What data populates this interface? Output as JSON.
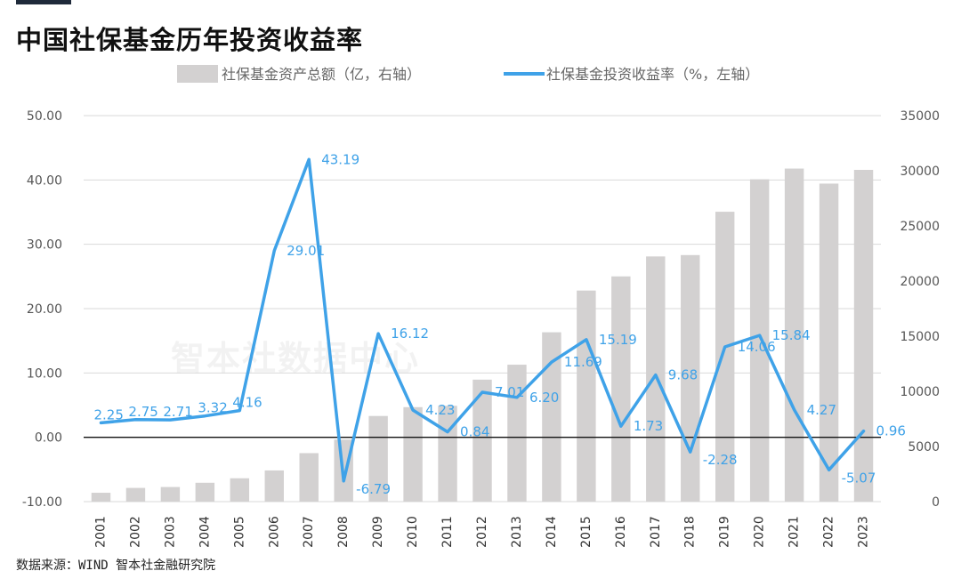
{
  "title": "中国社保基金历年投资收益率",
  "source": "数据来源：WIND 智本社金融研究院",
  "watermark": "智本社数据中心",
  "chart_data": {
    "type": "bar+line",
    "categories": [
      "2001",
      "2002",
      "2003",
      "2004",
      "2005",
      "2006",
      "2007",
      "2008",
      "2009",
      "2010",
      "2011",
      "2012",
      "2013",
      "2014",
      "2015",
      "2016",
      "2017",
      "2018",
      "2019",
      "2020",
      "2021",
      "2022",
      "2023"
    ],
    "series": [
      {
        "name": "社保基金资产总额（亿，右轴）",
        "type": "bar",
        "axis": "right",
        "color": "#d3d1d1",
        "values": [
          805,
          1242,
          1325,
          1711,
          2118,
          2828,
          4397,
          5624,
          7766,
          8567,
          8688,
          11060,
          12416,
          15356,
          19138,
          20423,
          22231,
          22354,
          26285,
          29227,
          30198,
          28836,
          30080
        ]
      },
      {
        "name": "社保基金投资收益率（%，左轴）",
        "type": "line",
        "axis": "left",
        "color": "#3fa2e8",
        "values": [
          2.25,
          2.75,
          2.71,
          3.32,
          4.16,
          29.01,
          43.19,
          -6.79,
          16.12,
          4.23,
          0.84,
          7.01,
          6.2,
          11.69,
          15.19,
          1.73,
          9.68,
          -2.28,
          14.06,
          15.84,
          4.27,
          -5.07,
          0.96
        ],
        "labels": [
          "2.25",
          "2.75",
          "2.71",
          "3.32",
          "4.16",
          "29.01",
          "43.19",
          "-6.79",
          "16.12",
          "4.23",
          "0.84",
          "7.01",
          "6.20",
          "11.69",
          "15.19",
          "1.73",
          "9.68",
          "-2.28",
          "14.06",
          "15.84",
          "4.27",
          "-5.07",
          "0.96"
        ]
      }
    ],
    "left_axis": {
      "min": -10,
      "max": 50,
      "ticks": [
        "-10.00",
        "0.00",
        "10.00",
        "20.00",
        "30.00",
        "40.00",
        "50.00"
      ]
    },
    "right_axis": {
      "min": 0,
      "max": 35000,
      "ticks": [
        "0",
        "5000",
        "10000",
        "15000",
        "20000",
        "25000",
        "30000",
        "35000"
      ]
    },
    "grid": true,
    "legend": "top"
  }
}
